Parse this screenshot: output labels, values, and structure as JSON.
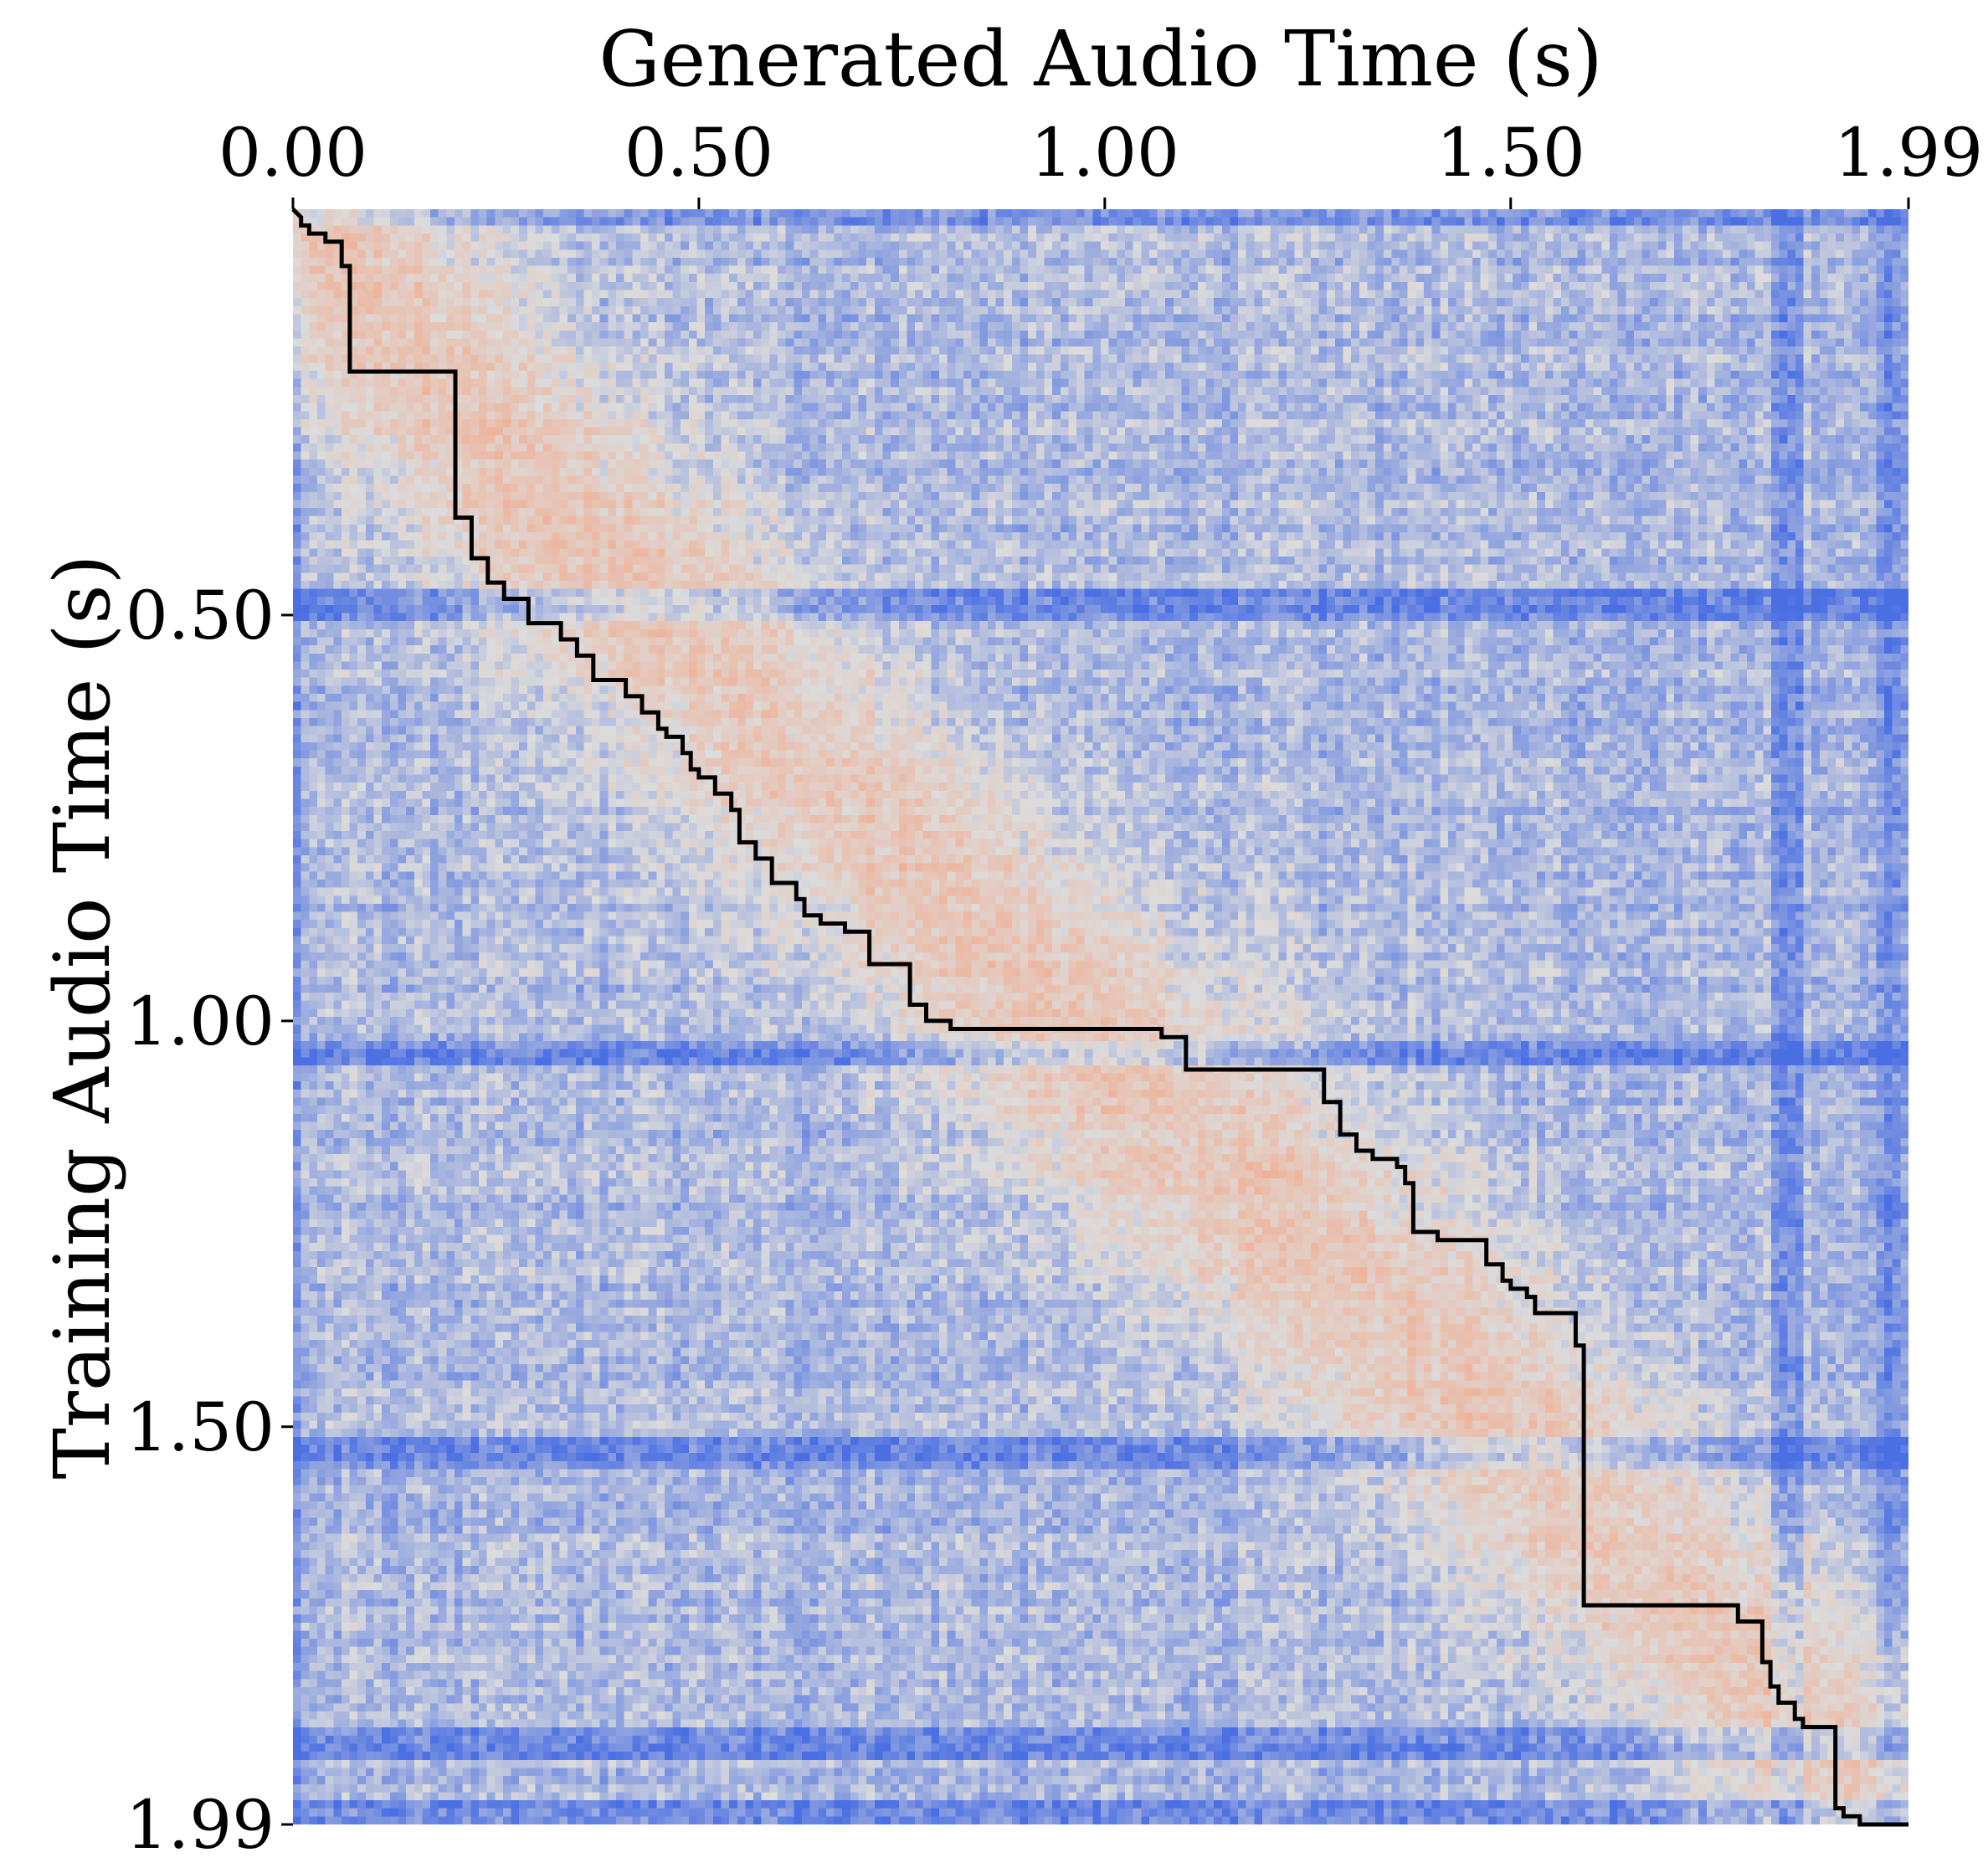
{
  "chart_data": {
    "type": "heatmap",
    "title": "",
    "xlabel": "Generated Audio Time (s)",
    "ylabel": "Training Audio Time (s)",
    "x_axis_position": "top",
    "xlim": [
      0.0,
      1.99
    ],
    "ylim": [
      0.0,
      1.99
    ],
    "y_inverted": true,
    "x_ticks": [
      {
        "value": 0.0,
        "label": "0.00"
      },
      {
        "value": 0.5,
        "label": "0.50"
      },
      {
        "value": 1.0,
        "label": "1.00"
      },
      {
        "value": 1.5,
        "label": "1.50"
      },
      {
        "value": 1.99,
        "label": "1.99"
      }
    ],
    "y_ticks": [
      {
        "value": 0.5,
        "label": "0.50"
      },
      {
        "value": 1.0,
        "label": "1.00"
      },
      {
        "value": 1.5,
        "label": "1.50"
      },
      {
        "value": 1.99,
        "label": "1.99"
      }
    ],
    "grid": false,
    "legend": "none",
    "colormap": {
      "name": "coolwarm",
      "low_color": "#4a6fe3",
      "mid_color": "#dcdcdc",
      "high_color": "#f3a98a"
    },
    "heatmap_grid": {
      "rows": 200,
      "cols": 200
    },
    "high_similarity_diagonal": [
      [
        0.0,
        0.0
      ],
      [
        0.25,
        0.3
      ],
      [
        0.5,
        0.55
      ],
      [
        1.0,
        1.05
      ],
      [
        1.5,
        1.5
      ],
      [
        1.99,
        1.99
      ]
    ],
    "low_similarity_rows": [
      0.49,
      1.04,
      1.53,
      1.89,
      1.98
    ],
    "low_similarity_cols": [
      1.84,
      1.97
    ],
    "alignment_path": {
      "color": "#000000",
      "points": [
        [
          0.0,
          0.0
        ],
        [
          0.01,
          0.01
        ],
        [
          0.01,
          0.02
        ],
        [
          0.02,
          0.02
        ],
        [
          0.02,
          0.03
        ],
        [
          0.04,
          0.03
        ],
        [
          0.04,
          0.04
        ],
        [
          0.06,
          0.04
        ],
        [
          0.06,
          0.07
        ],
        [
          0.07,
          0.07
        ],
        [
          0.07,
          0.2
        ],
        [
          0.2,
          0.2
        ],
        [
          0.2,
          0.38
        ],
        [
          0.22,
          0.38
        ],
        [
          0.22,
          0.43
        ],
        [
          0.24,
          0.43
        ],
        [
          0.24,
          0.46
        ],
        [
          0.26,
          0.46
        ],
        [
          0.26,
          0.48
        ],
        [
          0.29,
          0.48
        ],
        [
          0.29,
          0.51
        ],
        [
          0.33,
          0.51
        ],
        [
          0.33,
          0.53
        ],
        [
          0.35,
          0.53
        ],
        [
          0.35,
          0.55
        ],
        [
          0.37,
          0.55
        ],
        [
          0.37,
          0.58
        ],
        [
          0.41,
          0.58
        ],
        [
          0.41,
          0.6
        ],
        [
          0.43,
          0.6
        ],
        [
          0.43,
          0.62
        ],
        [
          0.45,
          0.62
        ],
        [
          0.45,
          0.64
        ],
        [
          0.46,
          0.64
        ],
        [
          0.46,
          0.65
        ],
        [
          0.48,
          0.65
        ],
        [
          0.48,
          0.67
        ],
        [
          0.49,
          0.67
        ],
        [
          0.49,
          0.69
        ],
        [
          0.5,
          0.69
        ],
        [
          0.5,
          0.7
        ],
        [
          0.52,
          0.7
        ],
        [
          0.52,
          0.72
        ],
        [
          0.54,
          0.72
        ],
        [
          0.54,
          0.74
        ],
        [
          0.55,
          0.74
        ],
        [
          0.55,
          0.78
        ],
        [
          0.57,
          0.78
        ],
        [
          0.57,
          0.8
        ],
        [
          0.59,
          0.8
        ],
        [
          0.59,
          0.83
        ],
        [
          0.62,
          0.83
        ],
        [
          0.62,
          0.85
        ],
        [
          0.63,
          0.85
        ],
        [
          0.63,
          0.87
        ],
        [
          0.65,
          0.87
        ],
        [
          0.65,
          0.88
        ],
        [
          0.68,
          0.88
        ],
        [
          0.68,
          0.89
        ],
        [
          0.71,
          0.89
        ],
        [
          0.71,
          0.93
        ],
        [
          0.76,
          0.93
        ],
        [
          0.76,
          0.98
        ],
        [
          0.78,
          0.98
        ],
        [
          0.78,
          1.0
        ],
        [
          0.81,
          1.0
        ],
        [
          0.81,
          1.01
        ],
        [
          1.07,
          1.01
        ],
        [
          1.07,
          1.02
        ],
        [
          1.1,
          1.02
        ],
        [
          1.1,
          1.06
        ],
        [
          1.27,
          1.06
        ],
        [
          1.27,
          1.1
        ],
        [
          1.29,
          1.1
        ],
        [
          1.29,
          1.14
        ],
        [
          1.31,
          1.14
        ],
        [
          1.31,
          1.16
        ],
        [
          1.33,
          1.16
        ],
        [
          1.33,
          1.17
        ],
        [
          1.36,
          1.17
        ],
        [
          1.36,
          1.18
        ],
        [
          1.37,
          1.18
        ],
        [
          1.37,
          1.2
        ],
        [
          1.38,
          1.2
        ],
        [
          1.38,
          1.26
        ],
        [
          1.41,
          1.26
        ],
        [
          1.41,
          1.27
        ],
        [
          1.47,
          1.27
        ],
        [
          1.47,
          1.3
        ],
        [
          1.49,
          1.3
        ],
        [
          1.49,
          1.32
        ],
        [
          1.5,
          1.32
        ],
        [
          1.5,
          1.33
        ],
        [
          1.52,
          1.33
        ],
        [
          1.52,
          1.34
        ],
        [
          1.53,
          1.34
        ],
        [
          1.53,
          1.36
        ],
        [
          1.58,
          1.36
        ],
        [
          1.58,
          1.4
        ],
        [
          1.59,
          1.4
        ],
        [
          1.59,
          1.72
        ],
        [
          1.78,
          1.72
        ],
        [
          1.78,
          1.74
        ],
        [
          1.81,
          1.74
        ],
        [
          1.81,
          1.79
        ],
        [
          1.82,
          1.79
        ],
        [
          1.82,
          1.82
        ],
        [
          1.83,
          1.82
        ],
        [
          1.83,
          1.84
        ],
        [
          1.85,
          1.84
        ],
        [
          1.85,
          1.86
        ],
        [
          1.86,
          1.86
        ],
        [
          1.86,
          1.87
        ],
        [
          1.9,
          1.87
        ],
        [
          1.9,
          1.97
        ],
        [
          1.91,
          1.97
        ],
        [
          1.91,
          1.98
        ],
        [
          1.93,
          1.98
        ],
        [
          1.93,
          1.99
        ],
        [
          1.99,
          1.99
        ]
      ]
    }
  }
}
